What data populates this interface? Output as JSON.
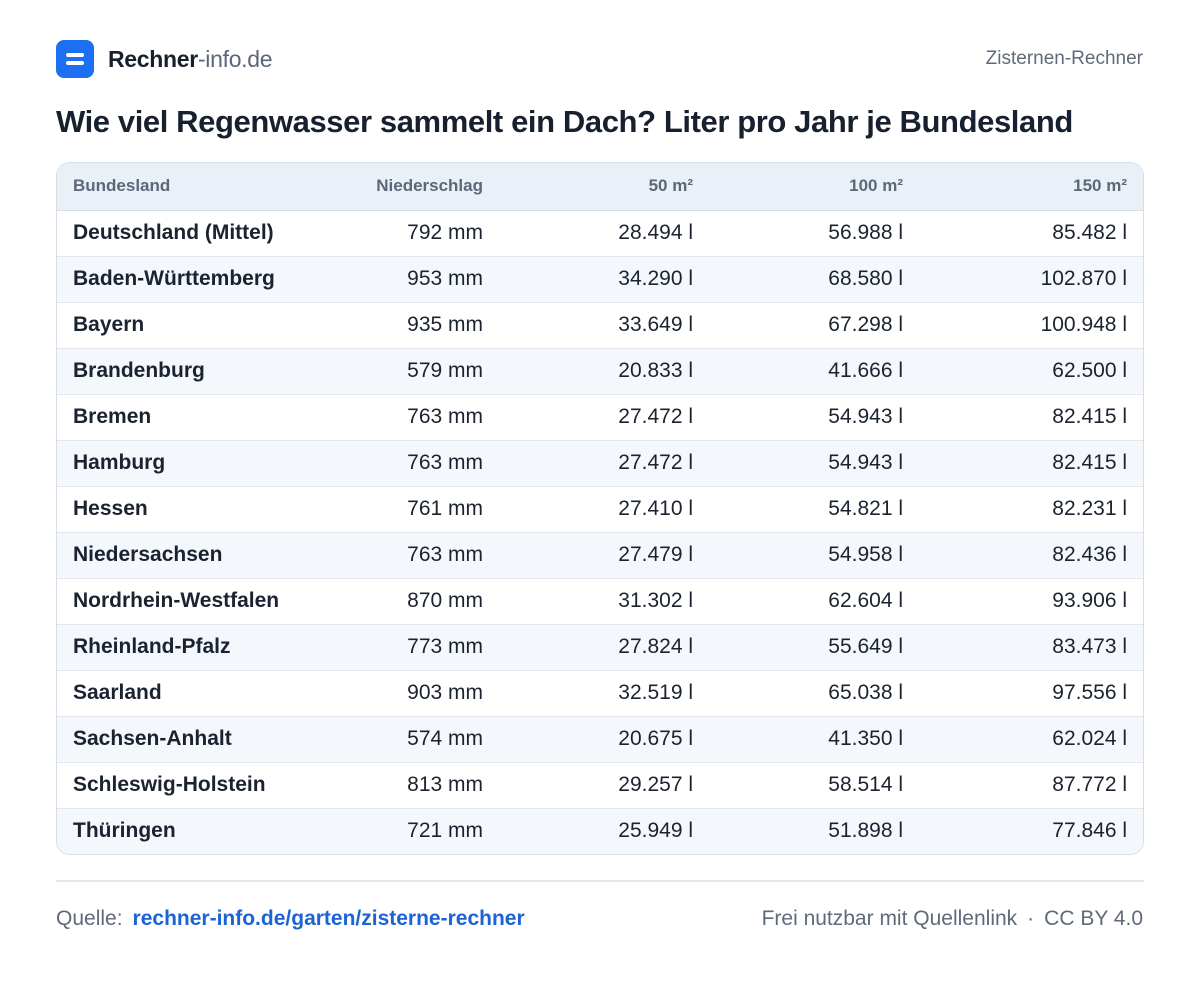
{
  "header": {
    "brand_strong": "Rechner",
    "brand_light": "-info.de",
    "right_label": "Zisternen-Rechner",
    "logo_icon": "menu-lines-icon",
    "accent_color": "#1c6ff0"
  },
  "title": "Wie viel Regenwasser sammelt ein Dach? Liter pro Jahr je Bundesland",
  "chart_data": {
    "type": "table",
    "title": "Wie viel Regenwasser sammelt ein Dach? Liter pro Jahr je Bundesland",
    "columns": [
      "Bundesland",
      "Niederschlag",
      "50 m²",
      "100 m²",
      "150 m²"
    ],
    "rows": [
      [
        "Deutschland (Mittel)",
        "792 mm",
        "28.494 l",
        "56.988 l",
        "85.482 l"
      ],
      [
        "Baden-Württemberg",
        "953 mm",
        "34.290 l",
        "68.580 l",
        "102.870 l"
      ],
      [
        "Bayern",
        "935 mm",
        "33.649 l",
        "67.298 l",
        "100.948 l"
      ],
      [
        "Brandenburg",
        "579 mm",
        "20.833 l",
        "41.666 l",
        "62.500 l"
      ],
      [
        "Bremen",
        "763 mm",
        "27.472 l",
        "54.943 l",
        "82.415 l"
      ],
      [
        "Hamburg",
        "763 mm",
        "27.472 l",
        "54.943 l",
        "82.415 l"
      ],
      [
        "Hessen",
        "761 mm",
        "27.410 l",
        "54.821 l",
        "82.231 l"
      ],
      [
        "Niedersachsen",
        "763 mm",
        "27.479 l",
        "54.958 l",
        "82.436 l"
      ],
      [
        "Nordrhein-Westfalen",
        "870 mm",
        "31.302 l",
        "62.604 l",
        "93.906 l"
      ],
      [
        "Rheinland-Pfalz",
        "773 mm",
        "27.824 l",
        "55.649 l",
        "83.473 l"
      ],
      [
        "Saarland",
        "903 mm",
        "32.519 l",
        "65.038 l",
        "97.556 l"
      ],
      [
        "Sachsen-Anhalt",
        "574 mm",
        "20.675 l",
        "41.350 l",
        "62.024 l"
      ],
      [
        "Schleswig-Holstein",
        "813 mm",
        "29.257 l",
        "58.514 l",
        "87.772 l"
      ],
      [
        "Thüringen",
        "721 mm",
        "25.949 l",
        "51.898 l",
        "77.846 l"
      ]
    ]
  },
  "footer": {
    "source_label": "Quelle:",
    "source_link": "rechner-info.de/garten/zisterne-rechner",
    "license_text": "Frei nutzbar mit Quellenlink",
    "separator": "·",
    "license_code": "CC BY 4.0",
    "link_color": "#1c63d6"
  }
}
